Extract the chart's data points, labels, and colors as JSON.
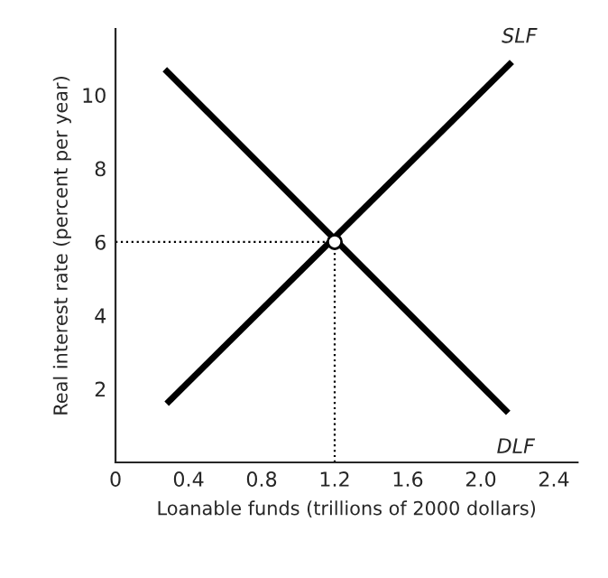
{
  "chart_data": {
    "type": "line",
    "xlabel": "Loanable funds (trillions of 2000 dollars)",
    "ylabel": "Real interest rate (percent per year)",
    "xlim": [
      0,
      2.53
    ],
    "ylim": [
      0,
      11.8
    ],
    "xticks": [
      {
        "value": 0,
        "label": "0"
      },
      0.4,
      0.8,
      1.2,
      1.6,
      {
        "value": 2,
        "label": "2.0"
      },
      2.4
    ],
    "yticks": [
      2,
      4,
      6,
      8,
      10
    ],
    "series": [
      {
        "name": "SLF",
        "color": "#000000",
        "x": [
          0.28,
          2.17
        ],
        "values": [
          1.6,
          10.9
        ]
      },
      {
        "name": "DLF",
        "color": "#000000",
        "x": [
          0.27,
          2.15
        ],
        "values": [
          10.7,
          1.35
        ]
      },
      {
        "type": "scatter",
        "color": "#000000",
        "x": [
          1.2
        ],
        "values": [
          6
        ],
        "marker": "circle"
      }
    ],
    "ref_lines": [
      {
        "axis": "x",
        "value": 1.2,
        "color": "#000000",
        "line_style": "dotted"
      },
      {
        "axis": "y",
        "value": 6,
        "color": "#000000",
        "line_style": "dotted"
      }
    ],
    "grid": false,
    "legend": false
  }
}
